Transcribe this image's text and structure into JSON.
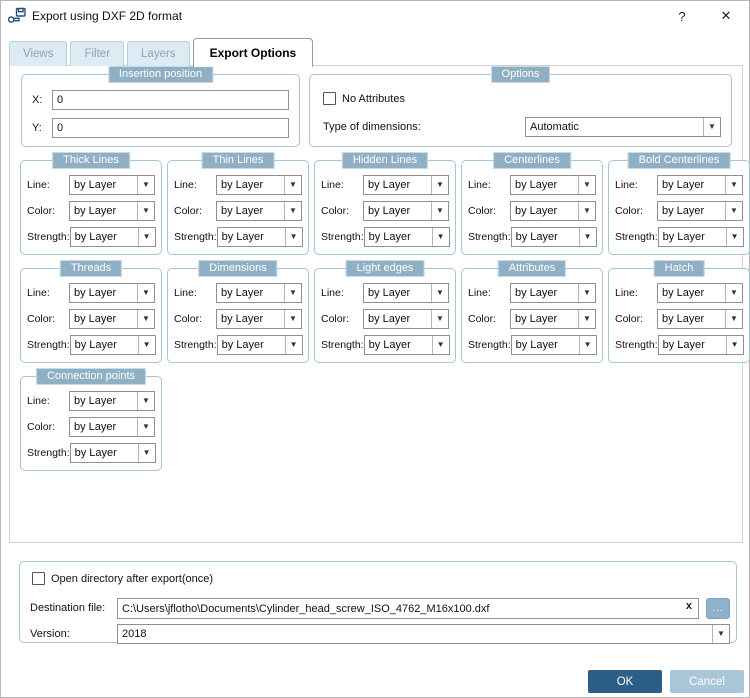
{
  "window": {
    "title": "Export using DXF 2D format",
    "help_label": "?",
    "close_label": "✕"
  },
  "tabs": [
    {
      "label": "Views",
      "active": false
    },
    {
      "label": "Filter",
      "active": false
    },
    {
      "label": "Layers",
      "active": false
    },
    {
      "label": "Export Options",
      "active": true
    }
  ],
  "insertion_position": {
    "title": "Insertion position",
    "fields": [
      {
        "label": "X:",
        "value": "0"
      },
      {
        "label": "Y:",
        "value": "0"
      }
    ]
  },
  "options": {
    "title": "Options",
    "no_attributes_label": "No Attributes",
    "no_attributes_checked": false,
    "type_of_dimensions_label": "Type of dimensions:",
    "type_of_dimensions_value": "Automatic"
  },
  "style_groups": {
    "field_labels": [
      "Line:",
      "Color:",
      "Strength:"
    ],
    "field_value": "by Layer",
    "rows": [
      [
        "Thick Lines",
        "Thin Lines",
        "Hidden Lines",
        "Centerlines",
        "Bold Centerlines"
      ],
      [
        "Threads",
        "Dimensions",
        "Light edges",
        "Attributes",
        "Hatch"
      ],
      [
        "Connection points"
      ]
    ]
  },
  "footer": {
    "open_directory_label": "Open directory after export(once)",
    "open_directory_checked": false,
    "destination_label": "Destination file:",
    "destination_value": "C:\\Users\\jflotho\\Documents\\Cylinder_head_screw_ISO_4762_M16x100.dxf",
    "clear_label": "x",
    "browse_label": "...",
    "version_label": "Version:",
    "version_value": "2018"
  },
  "actions": {
    "ok_label": "OK",
    "cancel_label": "Cancel"
  },
  "colors": {
    "accent_dark": "#2d5e85",
    "accent_light": "#a9c6d8",
    "badge": "#8fafc4",
    "group_border": "#a7c5d8",
    "tab_inactive_bg": "#dcebf4"
  }
}
